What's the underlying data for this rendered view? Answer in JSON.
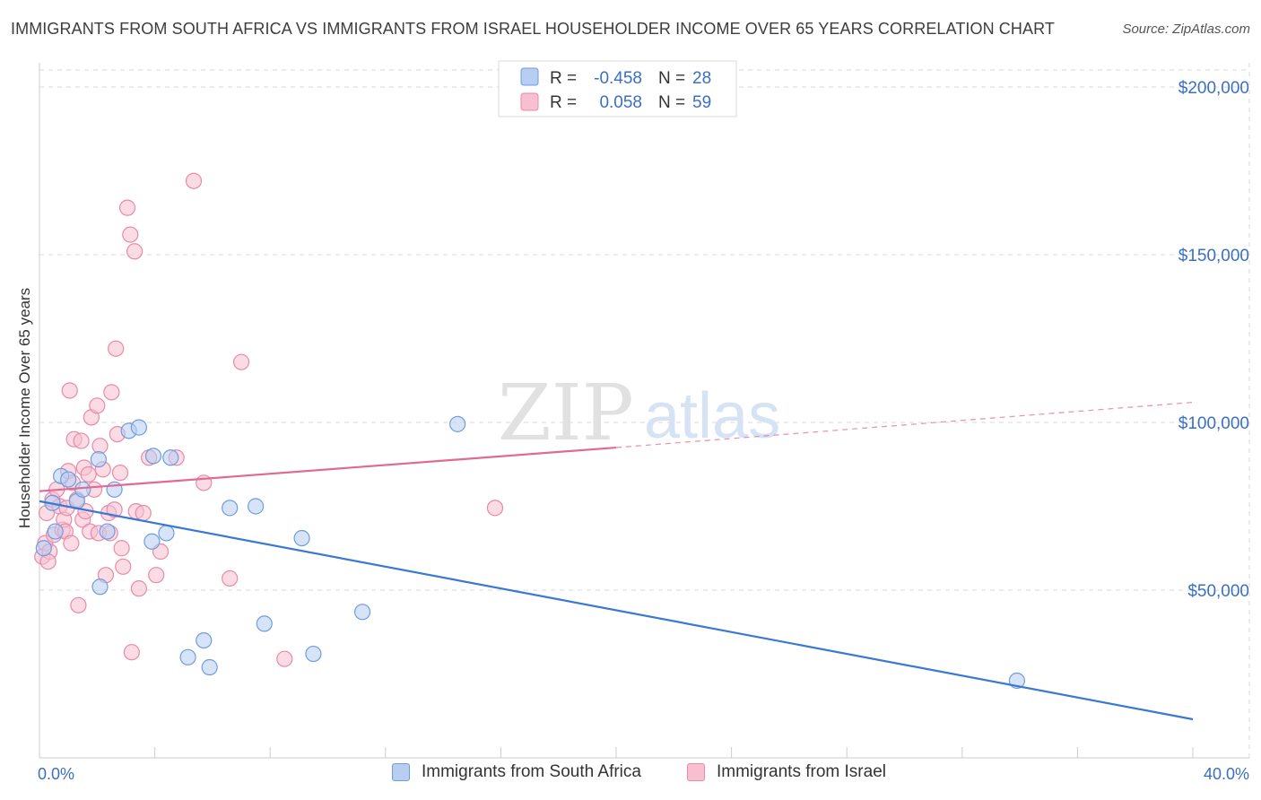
{
  "title": "IMMIGRANTS FROM SOUTH AFRICA VS IMMIGRANTS FROM ISRAEL HOUSEHOLDER INCOME OVER 65 YEARS CORRELATION CHART",
  "source": "Source: ZipAtlas.com",
  "watermark": {
    "zip": "ZIP",
    "atlas": "atlas"
  },
  "colors": {
    "south_africa_fill": "#b7cdf2",
    "south_africa_stroke": "#6f9ce0",
    "south_africa_line": "#3a78d4",
    "israel_fill": "#f7bfd0",
    "israel_stroke": "#e88aa8",
    "israel_line": "#e06a93",
    "axis_value_text": "#3a6fc4",
    "grid": "#d9d9d9"
  },
  "legend_box": {
    "rows": [
      {
        "r_label": "R =",
        "r_value": "-0.458",
        "n_label": "N =",
        "n_value": "28"
      },
      {
        "r_label": "R =",
        "r_value": "0.058",
        "n_label": "N =",
        "n_value": "59"
      }
    ]
  },
  "chart_data": {
    "type": "scatter",
    "title": "IMMIGRANTS FROM SOUTH AFRICA VS IMMIGRANTS FROM ISRAEL HOUSEHOLDER INCOME OVER 65 YEARS CORRELATION CHART",
    "xlabel": "",
    "ylabel": "Householder Income Over 65 years",
    "xlim": [
      0,
      40
    ],
    "ylim": [
      0,
      210000
    ],
    "x_tick_labels": {
      "min": "0.0%",
      "max": "40.0%"
    },
    "y_ticks": [
      {
        "value": 50000,
        "label": "$50,000"
      },
      {
        "value": 100000,
        "label": "$100,000"
      },
      {
        "value": 150000,
        "label": "$150,000"
      },
      {
        "value": 200000,
        "label": "$200,000"
      }
    ],
    "grid": true,
    "legend_position": "bottom",
    "series": [
      {
        "name": "Immigrants from South Africa",
        "r": -0.458,
        "n": 28,
        "trend": {
          "x0": 0,
          "y0": 76500,
          "x1": 40,
          "y1": 11500,
          "dashed_from": null
        },
        "points": [
          [
            0.15,
            62500
          ],
          [
            0.45,
            76000
          ],
          [
            0.75,
            84000
          ],
          [
            1.0,
            83000
          ],
          [
            1.3,
            76500
          ],
          [
            1.5,
            80000
          ],
          [
            2.05,
            89000
          ],
          [
            2.6,
            80000
          ],
          [
            2.1,
            51000
          ],
          [
            3.1,
            97500
          ],
          [
            3.45,
            98500
          ],
          [
            3.9,
            64500
          ],
          [
            3.95,
            90000
          ],
          [
            4.4,
            67000
          ],
          [
            4.55,
            89500
          ],
          [
            5.15,
            30000
          ],
          [
            5.7,
            35000
          ],
          [
            5.9,
            27000
          ],
          [
            6.6,
            74500
          ],
          [
            7.5,
            75000
          ],
          [
            7.8,
            40000
          ],
          [
            9.1,
            65500
          ],
          [
            9.5,
            31000
          ],
          [
            11.2,
            43500
          ],
          [
            14.5,
            99500
          ],
          [
            2.35,
            67500
          ],
          [
            0.55,
            67500
          ],
          [
            33.9,
            23000
          ]
        ]
      },
      {
        "name": "Immigrants from Israel",
        "r": 0.058,
        "n": 59,
        "trend": {
          "x0": 0,
          "y0": 79500,
          "x1": 20,
          "y1": 92500,
          "dashed_to_x": 40,
          "dashed_to_y": 106000
        },
        "points": [
          [
            0.1,
            60000
          ],
          [
            0.2,
            64000
          ],
          [
            0.25,
            73000
          ],
          [
            0.35,
            61500
          ],
          [
            0.45,
            77000
          ],
          [
            0.5,
            66500
          ],
          [
            0.6,
            80000
          ],
          [
            0.7,
            75000
          ],
          [
            0.8,
            68000
          ],
          [
            0.85,
            71000
          ],
          [
            0.9,
            67500
          ],
          [
            0.95,
            74500
          ],
          [
            1.0,
            85500
          ],
          [
            1.1,
            64000
          ],
          [
            1.15,
            82000
          ],
          [
            1.2,
            95000
          ],
          [
            1.3,
            77000
          ],
          [
            1.35,
            45500
          ],
          [
            1.45,
            94500
          ],
          [
            1.5,
            71000
          ],
          [
            1.55,
            86500
          ],
          [
            1.6,
            73500
          ],
          [
            1.7,
            84500
          ],
          [
            1.75,
            67500
          ],
          [
            1.8,
            101500
          ],
          [
            1.9,
            80000
          ],
          [
            2.0,
            105000
          ],
          [
            2.05,
            67000
          ],
          [
            2.1,
            93000
          ],
          [
            2.2,
            86000
          ],
          [
            2.3,
            54500
          ],
          [
            2.4,
            73000
          ],
          [
            2.45,
            67000
          ],
          [
            2.5,
            109000
          ],
          [
            2.6,
            74000
          ],
          [
            2.65,
            122000
          ],
          [
            2.7,
            96500
          ],
          [
            2.8,
            85000
          ],
          [
            2.85,
            62500
          ],
          [
            2.9,
            57000
          ],
          [
            3.05,
            164000
          ],
          [
            3.15,
            156000
          ],
          [
            3.2,
            31500
          ],
          [
            3.3,
            151000
          ],
          [
            3.35,
            73500
          ],
          [
            3.45,
            50500
          ],
          [
            3.6,
            73000
          ],
          [
            3.8,
            89500
          ],
          [
            4.05,
            54500
          ],
          [
            4.2,
            61500
          ],
          [
            4.75,
            89500
          ],
          [
            5.35,
            172000
          ],
          [
            5.7,
            82000
          ],
          [
            6.6,
            53500
          ],
          [
            7.0,
            118000
          ],
          [
            8.5,
            29500
          ],
          [
            15.8,
            74500
          ],
          [
            1.05,
            109500
          ],
          [
            0.3,
            58500
          ]
        ]
      }
    ]
  }
}
